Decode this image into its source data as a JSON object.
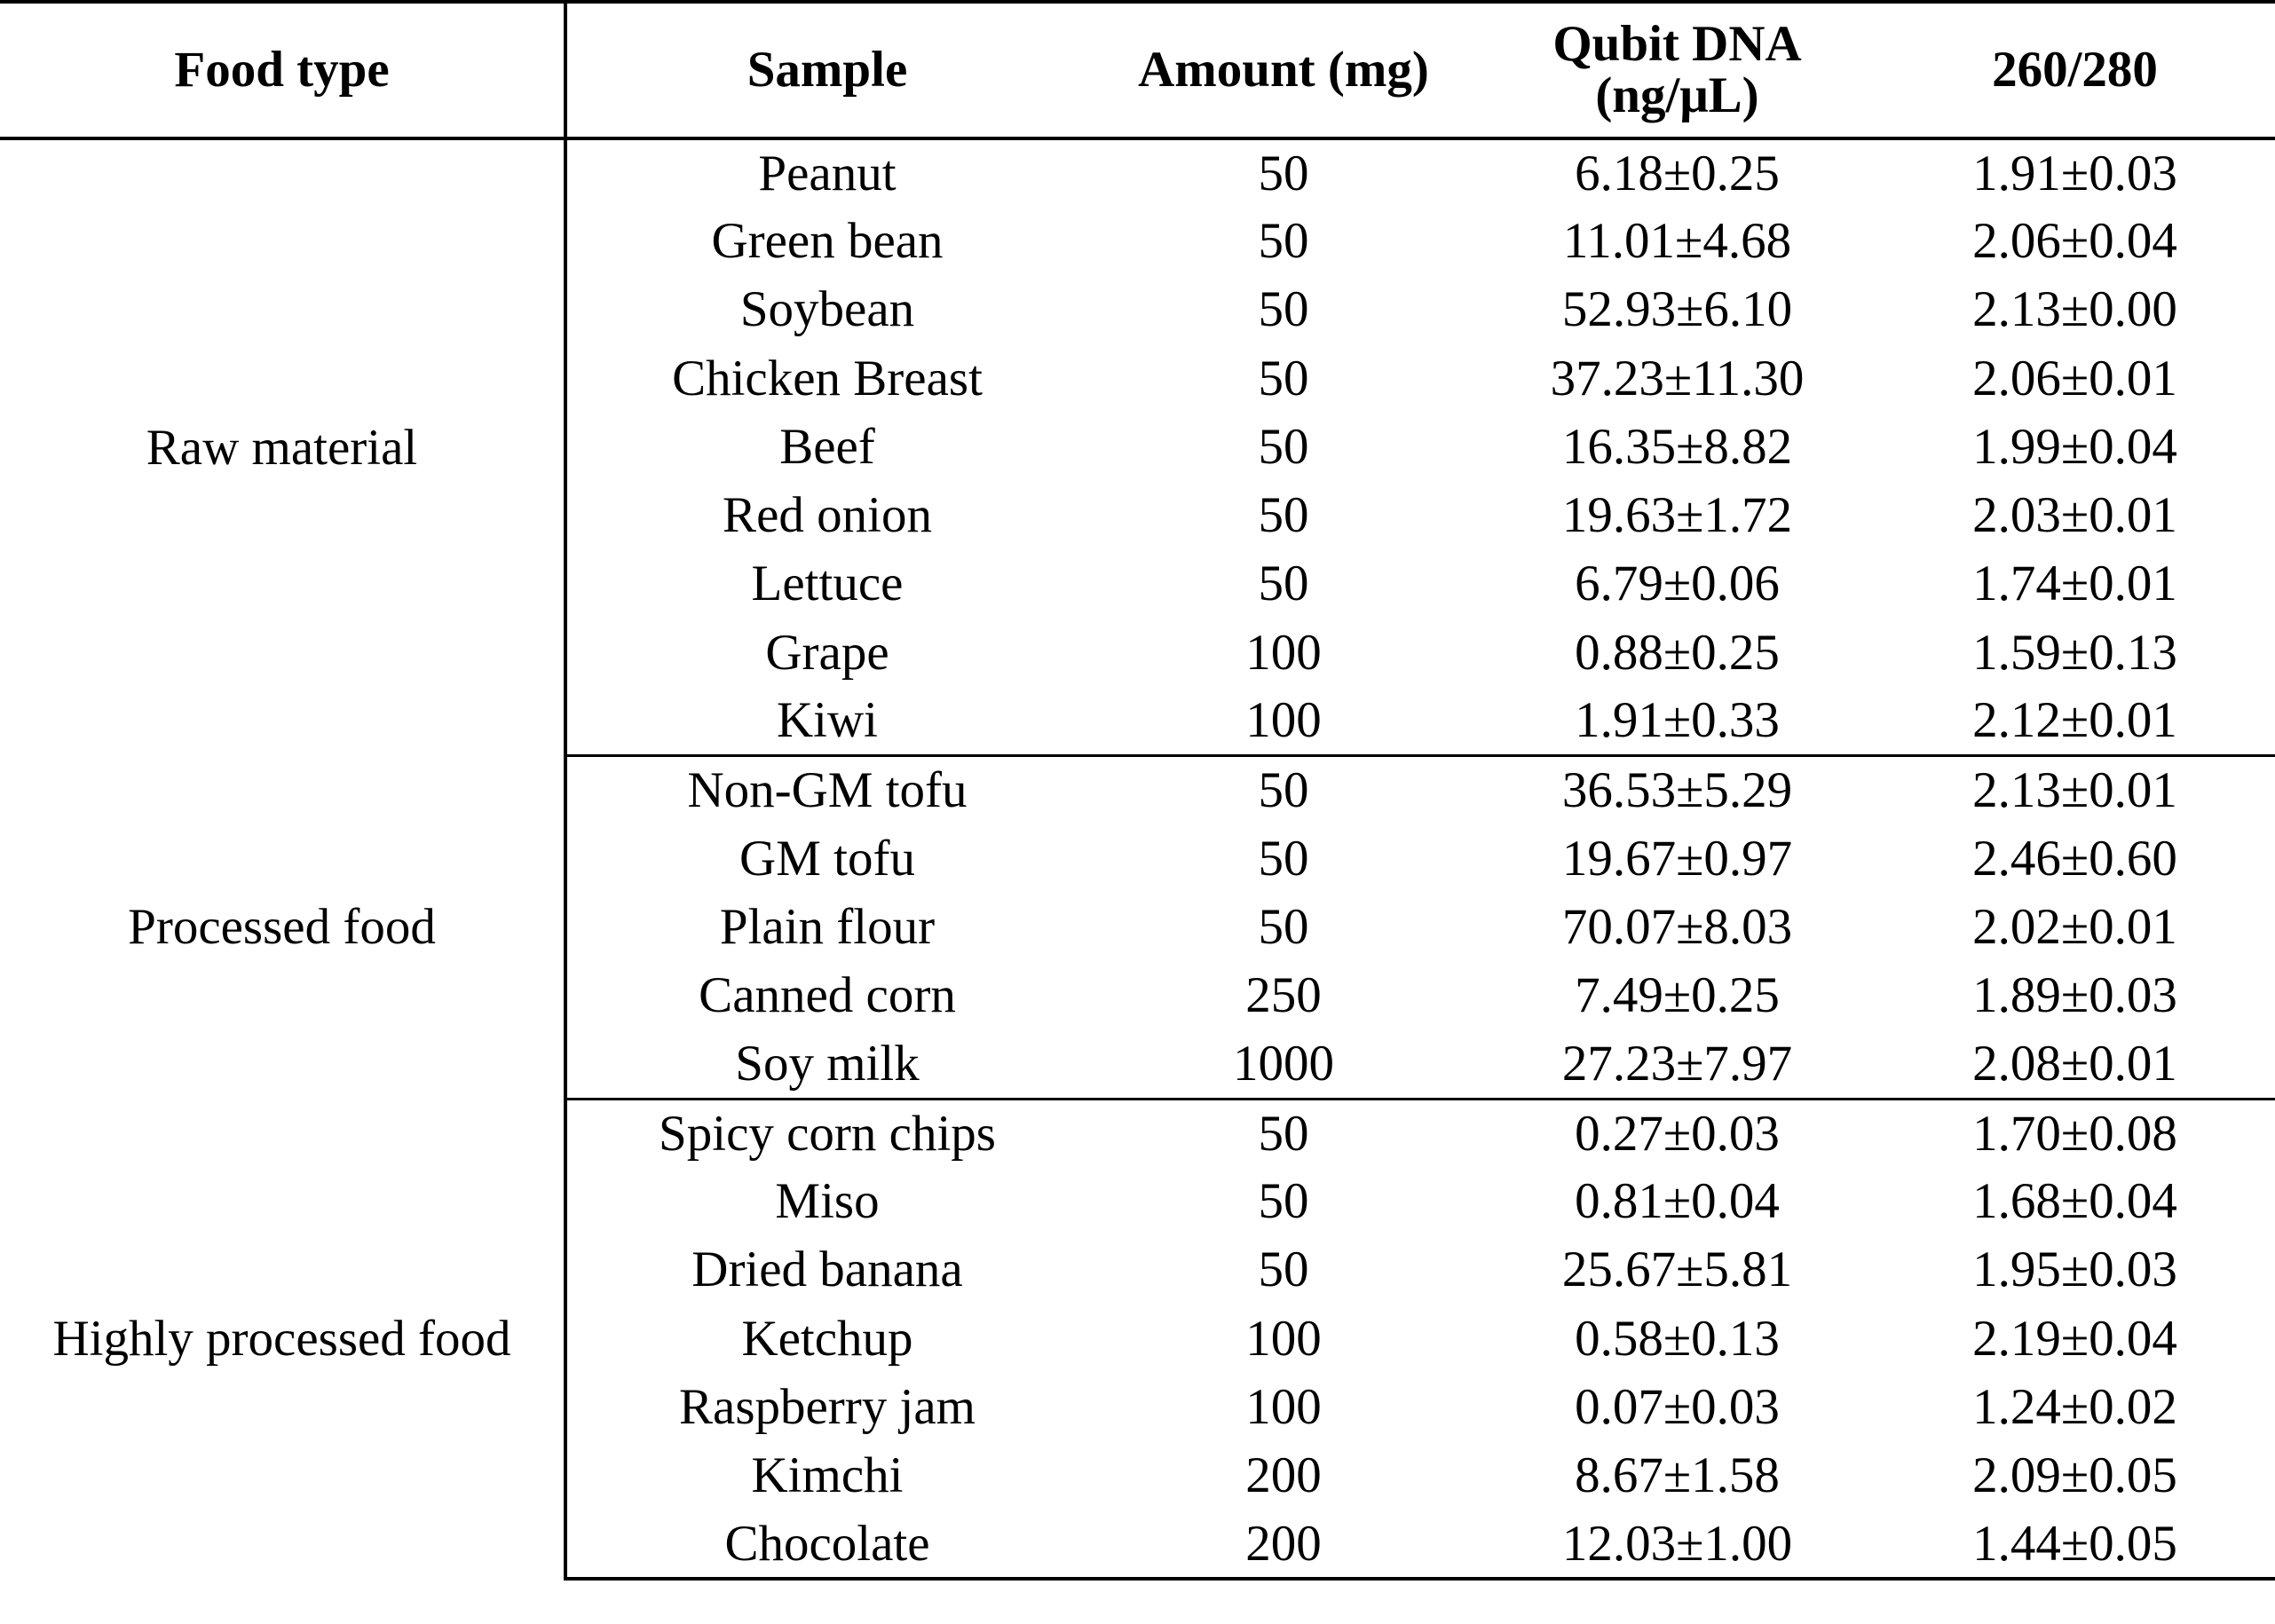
{
  "table": {
    "headers": {
      "food_type": "Food type",
      "sample": "Sample",
      "amount": "Amount (mg)",
      "qubit_line1": "Qubit DNA",
      "qubit_line2": "(ng/μL)",
      "ratio": "260/280"
    },
    "groups": [
      {
        "food_type": "Raw material",
        "rows": [
          {
            "sample": "Peanut",
            "amount": "50",
            "qubit": "6.18±0.25",
            "ratio": "1.91±0.03"
          },
          {
            "sample": "Green bean",
            "amount": "50",
            "qubit": "11.01±4.68",
            "ratio": "2.06±0.04"
          },
          {
            "sample": "Soybean",
            "amount": "50",
            "qubit": "52.93±6.10",
            "ratio": "2.13±0.00"
          },
          {
            "sample": "Chicken Breast",
            "amount": "50",
            "qubit": "37.23±11.30",
            "ratio": "2.06±0.01"
          },
          {
            "sample": "Beef",
            "amount": "50",
            "qubit": "16.35±8.82",
            "ratio": "1.99±0.04"
          },
          {
            "sample": "Red onion",
            "amount": "50",
            "qubit": "19.63±1.72",
            "ratio": "2.03±0.01"
          },
          {
            "sample": "Lettuce",
            "amount": "50",
            "qubit": "6.79±0.06",
            "ratio": "1.74±0.01"
          },
          {
            "sample": "Grape",
            "amount": "100",
            "qubit": "0.88±0.25",
            "ratio": "1.59±0.13"
          },
          {
            "sample": "Kiwi",
            "amount": "100",
            "qubit": "1.91±0.33",
            "ratio": "2.12±0.01"
          }
        ]
      },
      {
        "food_type": "Processed food",
        "rows": [
          {
            "sample": "Non-GM tofu",
            "amount": "50",
            "qubit": "36.53±5.29",
            "ratio": "2.13±0.01"
          },
          {
            "sample": "GM tofu",
            "amount": "50",
            "qubit": "19.67±0.97",
            "ratio": "2.46±0.60"
          },
          {
            "sample": "Plain flour",
            "amount": "50",
            "qubit": "70.07±8.03",
            "ratio": "2.02±0.01"
          },
          {
            "sample": "Canned corn",
            "amount": "250",
            "qubit": "7.49±0.25",
            "ratio": "1.89±0.03"
          },
          {
            "sample": "Soy milk",
            "amount": "1000",
            "qubit": "27.23±7.97",
            "ratio": "2.08±0.01"
          }
        ]
      },
      {
        "food_type": "Highly processed food",
        "rows": [
          {
            "sample": "Spicy corn chips",
            "amount": "50",
            "qubit": "0.27±0.03",
            "ratio": "1.70±0.08"
          },
          {
            "sample": "Miso",
            "amount": "50",
            "qubit": "0.81±0.04",
            "ratio": "1.68±0.04"
          },
          {
            "sample": "Dried banana",
            "amount": "50",
            "qubit": "25.67±5.81",
            "ratio": "1.95±0.03"
          },
          {
            "sample": "Ketchup",
            "amount": "100",
            "qubit": "0.58±0.13",
            "ratio": "2.19±0.04"
          },
          {
            "sample": "Raspberry jam",
            "amount": "100",
            "qubit": "0.07±0.03",
            "ratio": "1.24±0.02"
          },
          {
            "sample": "Kimchi",
            "amount": "200",
            "qubit": "8.67±1.58",
            "ratio": "2.09±0.05"
          },
          {
            "sample": "Chocolate",
            "amount": "200",
            "qubit": "12.03±1.00",
            "ratio": "1.44±0.05"
          }
        ]
      }
    ]
  }
}
